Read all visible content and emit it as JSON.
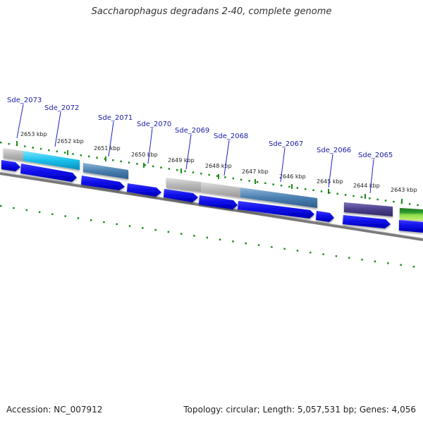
{
  "title": "Saccharophagus degradans 2-40, complete genome",
  "footer": {
    "accession": "Accession: NC_007912",
    "summary": "Topology: circular; Length: 5,057,531 bp; Genes: 4,056"
  },
  "ticks": [
    "2653 kbp",
    "2652 kbp",
    "2651 kbp",
    "2650 kbp",
    "2649 kbp",
    "2648 kbp",
    "2647 kbp",
    "2646 kbp",
    "2645 kbp",
    "2644 kbp",
    "2643 kbp"
  ],
  "gene_labels": [
    "Sde_2073",
    "Sde_2072",
    "Sde_2071",
    "Sde_2070",
    "Sde_2069",
    "Sde_2068",
    "Sde_2067",
    "Sde_2066",
    "Sde_2065"
  ],
  "colors": {
    "backbone": "#808080",
    "gene_arrow": "#0a0ae6",
    "tick": "#1e8c1e",
    "label_link": "#2020c8",
    "feature_gray": "#b8b8b8",
    "feature_cyan": "#18c0ec",
    "feature_steel": "#4a7fb0",
    "feature_purple": "#4a3f8a",
    "feature_green": "#2f9a2f"
  }
}
